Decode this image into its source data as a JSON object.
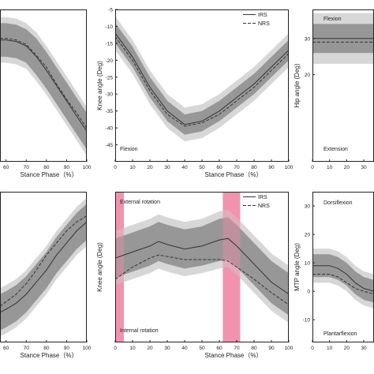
{
  "chart_data": [
    {
      "type": "line",
      "xlabel": "Stance Phase（%）",
      "xticks": [
        60,
        70,
        80,
        90,
        100
      ],
      "xlim": [
        57,
        100
      ],
      "ylim": [
        0,
        100
      ],
      "legend": "none",
      "series": [
        {
          "name": "IRS",
          "x": [
            57,
            60,
            65,
            70,
            75,
            80,
            85,
            90,
            95,
            100
          ],
          "y": [
            80,
            80,
            79,
            76,
            69,
            60,
            50,
            40,
            30,
            20
          ]
        },
        {
          "name": "NRS",
          "x": [
            57,
            60,
            65,
            70,
            75,
            80,
            85,
            90,
            95,
            100
          ],
          "y": [
            81,
            81,
            80,
            77,
            70,
            62,
            51,
            41,
            32,
            22
          ]
        }
      ],
      "band": {
        "x": [
          57,
          60,
          65,
          70,
          75,
          80,
          85,
          90,
          95,
          100
        ],
        "half_width": [
          11,
          11,
          11,
          11,
          12,
          12,
          12,
          12,
          12,
          12
        ]
      },
      "outer_band": {
        "x": [
          57,
          60,
          65,
          70,
          75,
          80,
          85,
          90,
          95,
          100
        ],
        "half_width": [
          15,
          15,
          15,
          15,
          16,
          16,
          16,
          16,
          16,
          16
        ]
      }
    },
    {
      "type": "line",
      "ylabel": "Knee angle (Deg)",
      "xlabel": "Stance Phase（%）",
      "xticks": [
        0,
        10,
        20,
        30,
        40,
        50,
        60,
        70,
        80,
        90,
        100
      ],
      "yticks": [
        -5,
        -10,
        -15,
        -20,
        -25,
        -30,
        -35,
        -40,
        -45
      ],
      "xlim": [
        0,
        100
      ],
      "ylim": [
        -50,
        -5
      ],
      "annotation": "Flexion",
      "legend": "top-right",
      "series": [
        {
          "name": "IRS",
          "x": [
            0,
            10,
            20,
            30,
            40,
            50,
            60,
            70,
            80,
            90,
            100
          ],
          "y": [
            -12,
            -19,
            -28,
            -35,
            -39,
            -38,
            -35,
            -31,
            -27,
            -22,
            -17
          ]
        },
        {
          "name": "NRS",
          "x": [
            0,
            10,
            20,
            30,
            40,
            50,
            60,
            70,
            80,
            90,
            100
          ],
          "y": [
            -13,
            -20,
            -29,
            -36,
            -39.5,
            -38.5,
            -36,
            -32,
            -28,
            -23,
            -18
          ]
        }
      ],
      "band": {
        "x": [
          0,
          10,
          20,
          30,
          40,
          50,
          60,
          70,
          80,
          90,
          100
        ],
        "half_width": [
          3,
          3,
          3,
          3,
          3,
          3,
          3,
          3,
          3,
          3,
          3
        ]
      },
      "outer_band": {
        "x": [
          0,
          10,
          20,
          30,
          40,
          50,
          60,
          70,
          80,
          90,
          100
        ],
        "half_width": [
          5,
          5,
          5,
          5,
          5,
          5,
          5,
          5,
          5,
          5,
          5
        ]
      }
    },
    {
      "type": "line",
      "ylabel": "Hip angle (Deg)",
      "xticks": [
        0,
        10,
        20,
        30
      ],
      "yticks": [
        20,
        30
      ],
      "xlim": [
        0,
        36
      ],
      "ylim": [
        -4,
        38
      ],
      "annotations": [
        "Flexion",
        "Extension"
      ],
      "legend": "none",
      "series": [
        {
          "name": "IRS",
          "x": [
            0,
            10,
            20,
            30,
            36
          ],
          "y": [
            30,
            30,
            30,
            30,
            30
          ]
        },
        {
          "name": "NRS",
          "x": [
            0,
            10,
            20,
            30,
            36
          ],
          "y": [
            29,
            29,
            29,
            29,
            29
          ]
        }
      ],
      "band": {
        "x": [
          0,
          10,
          20,
          30,
          36
        ],
        "half_width": [
          4,
          4,
          4,
          4,
          4
        ]
      },
      "outer_band": {
        "x": [
          0,
          10,
          20,
          30,
          36
        ],
        "half_width": [
          7,
          7,
          7,
          7,
          7
        ]
      }
    },
    {
      "type": "line",
      "xlabel": "Stance Phase（%）",
      "xticks": [
        60,
        70,
        80,
        90,
        100
      ],
      "xlim": [
        57,
        100
      ],
      "ylim": [
        0,
        100
      ],
      "legend": "none",
      "series": [
        {
          "name": "IRS",
          "x": [
            57,
            60,
            65,
            70,
            75,
            80,
            85,
            90,
            95,
            100
          ],
          "y": [
            20,
            22,
            26,
            32,
            40,
            48,
            58,
            66,
            74,
            80
          ]
        },
        {
          "name": "NRS",
          "x": [
            57,
            60,
            65,
            70,
            75,
            80,
            85,
            90,
            95,
            100
          ],
          "y": [
            24,
            27,
            32,
            39,
            48,
            58,
            66,
            74,
            80,
            84
          ]
        }
      ],
      "band": {
        "x": [
          57,
          60,
          65,
          70,
          75,
          80,
          85,
          90,
          95,
          100
        ],
        "half_width": [
          12,
          12,
          12,
          12,
          12,
          12,
          12,
          12,
          12,
          12
        ]
      },
      "outer_band": {
        "x": [
          57,
          60,
          65,
          70,
          75,
          80,
          85,
          90,
          95,
          100
        ],
        "half_width": [
          16,
          16,
          16,
          16,
          16,
          16,
          16,
          16,
          16,
          16
        ]
      }
    },
    {
      "type": "line",
      "ylabel": "Knee angle (Deg)",
      "xlabel": "Stance Phase（%）",
      "xticks": [
        0,
        10,
        20,
        30,
        40,
        50,
        60,
        70,
        80,
        90,
        100
      ],
      "xlim": [
        0,
        100
      ],
      "ylim": [
        0,
        100
      ],
      "annotations": [
        "External rotation",
        "Internal rotation"
      ],
      "legend": "top-right",
      "highlight_ranges": [
        [
          0,
          5
        ],
        [
          62,
          72
        ]
      ],
      "highlight_color": "#f08aa8",
      "series": [
        {
          "name": "IRS",
          "x": [
            0,
            10,
            20,
            25,
            30,
            40,
            50,
            60,
            65,
            70,
            80,
            90,
            100
          ],
          "y": [
            56,
            60,
            64,
            67,
            65,
            62,
            64,
            68,
            69,
            64,
            52,
            40,
            32
          ]
        },
        {
          "name": "NRS",
          "x": [
            0,
            10,
            20,
            25,
            30,
            40,
            50,
            60,
            65,
            70,
            80,
            90,
            100
          ],
          "y": [
            42,
            50,
            56,
            58,
            57,
            55,
            55,
            55,
            54,
            50,
            42,
            33,
            25
          ]
        }
      ],
      "band": {
        "x": [
          0,
          10,
          20,
          25,
          30,
          40,
          50,
          60,
          65,
          70,
          80,
          90,
          100
        ],
        "half_width": [
          13,
          13,
          13,
          13,
          13,
          13,
          13,
          14,
          14,
          14,
          14,
          14,
          14
        ]
      },
      "outer_band": {
        "x": [
          0,
          10,
          20,
          25,
          30,
          40,
          50,
          60,
          65,
          70,
          80,
          90,
          100
        ],
        "half_width": [
          18,
          18,
          18,
          18,
          18,
          18,
          18,
          19,
          19,
          19,
          19,
          19,
          19
        ]
      }
    },
    {
      "type": "line",
      "ylabel": "MTP angle (Deg)",
      "xticks": [
        0,
        10,
        20,
        30
      ],
      "yticks": [
        30,
        20,
        10,
        0,
        -10
      ],
      "xlim": [
        0,
        36
      ],
      "ylim": [
        -18,
        35
      ],
      "annotations": [
        "Dorsiflexion",
        "Plantarflexion"
      ],
      "legend": "none",
      "series": [
        {
          "name": "IRS",
          "x": [
            0,
            5,
            10,
            15,
            20,
            25,
            30,
            36
          ],
          "y": [
            9,
            9,
            9,
            8,
            6,
            3,
            1,
            0
          ]
        },
        {
          "name": "NRS",
          "x": [
            0,
            5,
            10,
            15,
            20,
            25,
            30,
            36
          ],
          "y": [
            6,
            6,
            6,
            5,
            3,
            1,
            0,
            -1
          ]
        }
      ],
      "band": {
        "x": [
          0,
          5,
          10,
          15,
          20,
          25,
          30,
          36
        ],
        "half_width": [
          4,
          4,
          4,
          4,
          4,
          4,
          4,
          4
        ]
      },
      "outer_band": {
        "x": [
          0,
          5,
          10,
          15,
          20,
          25,
          30,
          36
        ],
        "half_width": [
          6,
          6,
          6,
          6,
          6,
          6,
          6,
          6
        ]
      }
    }
  ],
  "colors": {
    "band_inner": "#8c8c8c",
    "band_outer": "#d0d0d0",
    "line_irs": "#333333",
    "line_nrs": "#333333"
  }
}
